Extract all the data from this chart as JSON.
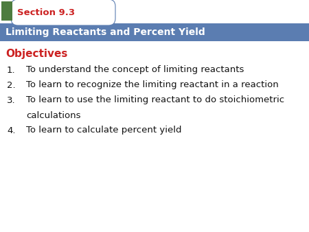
{
  "section_label": "Section 9.3",
  "banner_title": "Limiting Reactants and Percent Yield",
  "objectives_label": "Objectives",
  "items": [
    "To understand the concept of limiting reactants",
    "To learn to recognize the limiting reactant in a reaction",
    "To learn to use the limiting reactant to do stoichiometric\ncalculations",
    "To learn to calculate percent yield"
  ],
  "header_bg_color": "#5b7db1",
  "tab_bg_color": "#ffffff",
  "section_text_color": "#cc2222",
  "banner_text_color": "#ffffff",
  "objectives_color": "#cc2222",
  "body_bg_color": "#ffffff",
  "body_text_color": "#111111",
  "green_square_color": "#4d7c3f",
  "tab_border_color": "#5b7db1",
  "fig_width": 4.5,
  "fig_height": 3.38,
  "dpi": 100
}
